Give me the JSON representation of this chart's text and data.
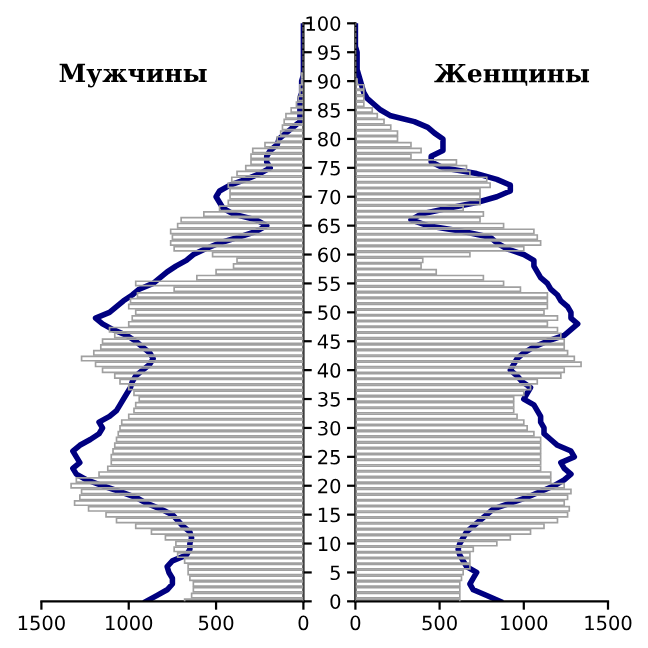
{
  "chart_data": [
    {
      "type": "bar",
      "orientation": "horizontal",
      "title": "Мужчины",
      "tick_labels": "x",
      "grid": false,
      "legend": false,
      "categories": [
        "100",
        null,
        null,
        null,
        null,
        "95",
        null,
        null,
        null,
        null,
        "90",
        null,
        null,
        null,
        null,
        "85",
        null,
        null,
        null,
        null,
        "80",
        null,
        null,
        null,
        null,
        "75",
        null,
        null,
        null,
        null,
        "70",
        null,
        null,
        null,
        null,
        "65",
        null,
        null,
        null,
        null,
        "60",
        null,
        null,
        null,
        null,
        "55",
        null,
        null,
        null,
        null,
        "50",
        null,
        null,
        null,
        null,
        "45",
        null,
        null,
        null,
        null,
        "40",
        null,
        null,
        null,
        null,
        "35",
        null,
        null,
        null,
        null,
        "30",
        null,
        null,
        null,
        null,
        "25",
        null,
        null,
        null,
        null,
        "20",
        null,
        null,
        null,
        null,
        "15",
        null,
        null,
        null,
        null,
        "10",
        null,
        null,
        null,
        null,
        "5",
        null,
        null,
        null,
        null,
        "0"
      ],
      "xlim": [
        1500,
        0
      ],
      "xticks": [
        1500,
        1000,
        500,
        0
      ],
      "series": [
        {
          "color": "#a0a0a0",
          "values": [
            0,
            0,
            0,
            0,
            0,
            0,
            0,
            0,
            0,
            10,
            10,
            20,
            20,
            30,
            40,
            70,
            100,
            110,
            120,
            130,
            150,
            220,
            290,
            300,
            300,
            330,
            380,
            410,
            430,
            420,
            420,
            430,
            480,
            570,
            700,
            720,
            760,
            750,
            760,
            740,
            520,
            380,
            400,
            500,
            610,
            960,
            740,
            950,
            990,
            1000,
            960,
            980,
            1000,
            1110,
            1080,
            1150,
            1160,
            1200,
            1270,
            1190,
            1150,
            1080,
            1050,
            1000,
            970,
            940,
            960,
            970,
            1000,
            1040,
            1050,
            1060,
            1070,
            1080,
            1090,
            1100,
            1100,
            1120,
            1170,
            1300,
            1330,
            1270,
            1280,
            1310,
            1230,
            1130,
            1070,
            960,
            870,
            790,
            730,
            740,
            720,
            680,
            660,
            660,
            650,
            630,
            630,
            640,
            680
          ]
        },
        {
          "type": "line",
          "color": "#000080",
          "values": [
            0,
            0,
            0,
            0,
            0,
            0,
            0,
            0,
            0,
            0,
            10,
            10,
            10,
            20,
            20,
            20,
            20,
            20,
            60,
            100,
            140,
            150,
            190,
            210,
            210,
            190,
            250,
            330,
            420,
            480,
            500,
            480,
            460,
            400,
            270,
            210,
            270,
            370,
            480,
            560,
            630,
            670,
            730,
            780,
            820,
            860,
            940,
            980,
            1030,
            1070,
            1110,
            1190,
            1150,
            1090,
            1010,
            960,
            920,
            880,
            860,
            880,
            920,
            960,
            980,
            990,
            1010,
            1030,
            1050,
            1070,
            1110,
            1170,
            1150,
            1170,
            1220,
            1280,
            1320,
            1300,
            1280,
            1320,
            1300,
            1240,
            1150,
            1050,
            960,
            900,
            820,
            750,
            720,
            690,
            650,
            640,
            650,
            650,
            670,
            750,
            780,
            770,
            750,
            750,
            780,
            840,
            900
          ]
        }
      ]
    },
    {
      "type": "bar",
      "orientation": "horizontal",
      "title": "Женщины",
      "grid": false,
      "legend": false,
      "categories": [
        "100",
        null,
        null,
        null,
        null,
        "95",
        null,
        null,
        null,
        null,
        "90",
        null,
        null,
        null,
        null,
        "85",
        null,
        null,
        null,
        null,
        "80",
        null,
        null,
        null,
        null,
        "75",
        null,
        null,
        null,
        null,
        "70",
        null,
        null,
        null,
        null,
        "65",
        null,
        null,
        null,
        null,
        "60",
        null,
        null,
        null,
        null,
        "55",
        null,
        null,
        null,
        null,
        "50",
        null,
        null,
        null,
        null,
        "45",
        null,
        null,
        null,
        null,
        "40",
        null,
        null,
        null,
        null,
        "35",
        null,
        null,
        null,
        null,
        "30",
        null,
        null,
        null,
        null,
        "25",
        null,
        null,
        null,
        null,
        "20",
        null,
        null,
        null,
        null,
        "15",
        null,
        null,
        null,
        null,
        "10",
        null,
        null,
        null,
        null,
        "5",
        null,
        null,
        null,
        null,
        "0"
      ],
      "xlim": [
        0,
        1500
      ],
      "xticks": [
        0,
        500,
        1000,
        1500
      ],
      "series": [
        {
          "color": "#a0a0a0",
          "values": [
            0,
            0,
            0,
            0,
            0,
            0,
            0,
            0,
            0,
            0,
            10,
            50,
            50,
            50,
            50,
            100,
            130,
            170,
            210,
            250,
            250,
            330,
            390,
            330,
            600,
            660,
            680,
            780,
            800,
            740,
            740,
            740,
            640,
            760,
            740,
            880,
            1060,
            1080,
            1100,
            1000,
            680,
            400,
            390,
            480,
            760,
            880,
            980,
            1140,
            1140,
            1140,
            1120,
            1200,
            1140,
            1200,
            1220,
            1240,
            1240,
            1260,
            1300,
            1340,
            1240,
            1220,
            1080,
            1040,
            1000,
            940,
            940,
            940,
            960,
            1000,
            1020,
            1060,
            1100,
            1100,
            1100,
            1100,
            1100,
            1100,
            1160,
            1160,
            1240,
            1280,
            1260,
            1240,
            1270,
            1260,
            1200,
            1120,
            1040,
            920,
            840,
            700,
            680,
            680,
            680,
            640,
            630,
            620,
            620,
            620,
            620
          ]
        },
        {
          "type": "line",
          "color": "#000080",
          "values": [
            0,
            0,
            0,
            0,
            0,
            10,
            10,
            10,
            10,
            20,
            30,
            40,
            50,
            70,
            110,
            150,
            210,
            350,
            430,
            470,
            520,
            520,
            520,
            450,
            450,
            520,
            720,
            840,
            920,
            920,
            840,
            720,
            550,
            390,
            330,
            430,
            640,
            800,
            840,
            900,
            1000,
            1060,
            1060,
            1080,
            1100,
            1140,
            1160,
            1200,
            1220,
            1260,
            1280,
            1280,
            1320,
            1280,
            1240,
            1140,
            1060,
            1000,
            960,
            940,
            920,
            960,
            990,
            1040,
            1020,
            1000,
            1060,
            1080,
            1100,
            1100,
            1120,
            1120,
            1160,
            1200,
            1280,
            1300,
            1220,
            1240,
            1280,
            1240,
            1180,
            1100,
            1020,
            920,
            820,
            780,
            740,
            700,
            660,
            640,
            620,
            610,
            620,
            640,
            660,
            720,
            700,
            680,
            700,
            780,
            860
          ]
        }
      ]
    }
  ]
}
